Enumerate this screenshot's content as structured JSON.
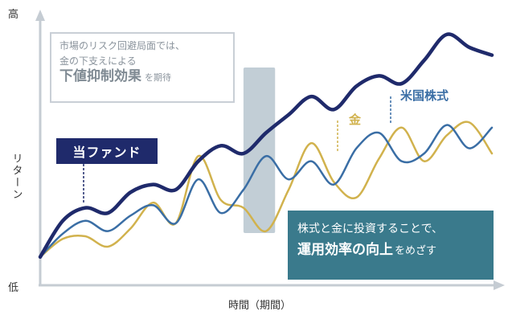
{
  "chart_data": {
    "type": "line",
    "title": "",
    "xlabel": "時間（期間）",
    "ylabel": "リターン",
    "y_axis_high_label": "高",
    "y_axis_low_label": "低",
    "x": [
      0,
      0.5,
      1,
      1.5,
      2,
      2.5,
      3,
      3.5,
      4,
      4.5,
      5,
      5.5,
      6,
      6.5,
      7,
      7.5,
      8,
      8.5,
      9,
      9.5,
      10
    ],
    "xlim": [
      0,
      10
    ],
    "ylim": [
      0,
      100
    ],
    "grid": false,
    "series": [
      {
        "name": "当ファンド",
        "color": "#1f2a6b",
        "values": [
          10,
          24,
          29,
          27,
          35,
          38,
          36,
          47,
          53,
          50,
          58,
          65,
          72,
          67,
          76,
          80,
          77,
          86,
          96,
          91,
          88
        ]
      },
      {
        "name": "米国株式",
        "color": "#3a6ea5",
        "values": [
          10,
          19,
          24,
          20,
          26,
          30,
          23,
          40,
          27,
          36,
          49,
          40,
          47,
          38,
          52,
          58,
          47,
          50,
          61,
          52,
          60
        ]
      },
      {
        "name": "金",
        "color": "#d1b24d",
        "values": [
          10,
          17,
          18,
          14,
          21,
          31,
          23,
          49,
          32,
          29,
          20,
          36,
          54,
          39,
          33,
          48,
          60,
          47,
          57,
          62,
          50
        ]
      }
    ],
    "highlight_band": {
      "x_start": 4.5,
      "x_end": 5.2
    },
    "annotations": {
      "top_callout": {
        "line1": "市場のリスク回避局面では、",
        "line2": "金の下支えによる",
        "emphasis": "下値抑制効果",
        "tail": "を期待"
      },
      "bottom_callout": {
        "line1": "株式と金に投資することで、",
        "emphasis": "運用効率の向上",
        "tail": "をめざす"
      }
    }
  }
}
